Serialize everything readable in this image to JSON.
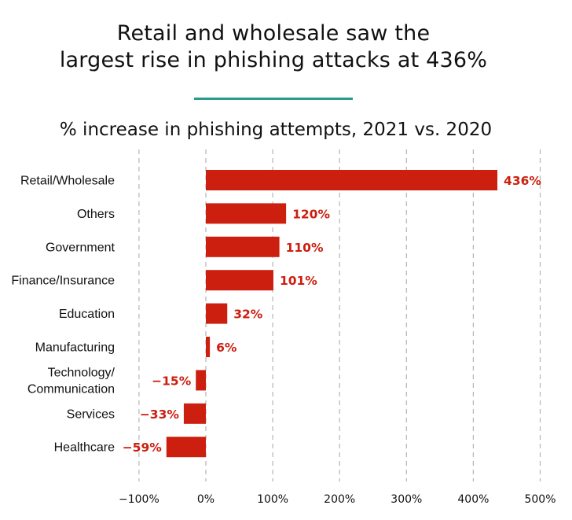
{
  "headline": {
    "line1": "Retail and wholesale saw the",
    "line2": "largest rise in phishing attacks at 436%"
  },
  "colors": {
    "bar": "#cc1f0f",
    "label": "#cc1f0f",
    "divider": "#2a9a90",
    "grid": "#b5b5b5"
  },
  "chart_data": {
    "type": "bar",
    "orientation": "horizontal",
    "title": "% increase in phishing attempts, 2021 vs. 2020",
    "categories": [
      "Retail/Wholesale",
      "Others",
      "Government",
      "Finance/Insurance",
      "Education",
      "Manufacturing",
      "Technology/\nCommunication",
      "Services",
      "Healthcare"
    ],
    "values": [
      436,
      120,
      110,
      101,
      32,
      6,
      -15,
      -33,
      -59
    ],
    "value_labels": [
      "436%",
      "120%",
      "110%",
      "101%",
      "32%",
      "6%",
      "−15%",
      "−33%",
      "−59%"
    ],
    "xlim": [
      -100,
      500
    ],
    "xticks": [
      -100,
      0,
      100,
      200,
      300,
      400,
      500
    ],
    "xtick_labels": [
      "−100%",
      "0%",
      "100%",
      "200%",
      "300%",
      "400%",
      "500%"
    ],
    "grid": "vertical dashed"
  }
}
